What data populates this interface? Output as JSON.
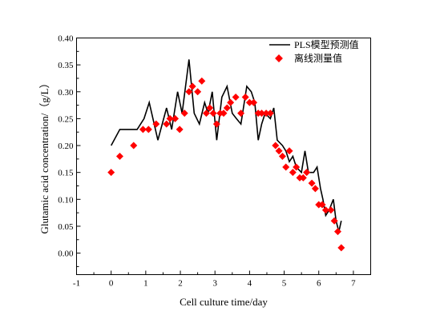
{
  "chart_data": {
    "type": "line",
    "title": "",
    "xlabel": "Cell culture time/day",
    "ylabel": "Glutamic acid concentration/（g/L）",
    "xlim": [
      -1,
      7.5
    ],
    "ylim": [
      -0.04,
      0.4
    ],
    "xticks": [
      "-1",
      "0",
      "1",
      "2",
      "3",
      "4",
      "5",
      "6",
      "7"
    ],
    "yticks": [
      "0.00",
      "0.05",
      "0.10",
      "0.15",
      "0.20",
      "0.25",
      "0.30",
      "0.35",
      "0.40"
    ],
    "grid": false,
    "legend_position": "top-right",
    "series": [
      {
        "name": "PLS模型预测值",
        "kind": "line",
        "color": "#000000",
        "x": [
          0,
          0.25,
          0.5,
          0.75,
          0.95,
          1.1,
          1.35,
          1.6,
          1.75,
          1.92,
          2.05,
          2.25,
          2.4,
          2.55,
          2.7,
          2.8,
          2.92,
          3.05,
          3.2,
          3.35,
          3.5,
          3.62,
          3.75,
          3.92,
          4.05,
          4.15,
          4.25,
          4.35,
          4.45,
          4.6,
          4.7,
          4.8,
          4.95,
          5.05,
          5.15,
          5.25,
          5.35,
          5.5,
          5.6,
          5.7,
          5.85,
          5.95,
          6.05,
          6.12,
          6.2,
          6.3,
          6.42,
          6.5,
          6.58,
          6.65
        ],
        "y": [
          0.2,
          0.23,
          0.23,
          0.23,
          0.25,
          0.28,
          0.21,
          0.27,
          0.23,
          0.3,
          0.26,
          0.36,
          0.26,
          0.24,
          0.28,
          0.26,
          0.3,
          0.21,
          0.29,
          0.31,
          0.26,
          0.25,
          0.24,
          0.31,
          0.3,
          0.28,
          0.21,
          0.24,
          0.26,
          0.25,
          0.27,
          0.21,
          0.2,
          0.19,
          0.17,
          0.18,
          0.16,
          0.15,
          0.19,
          0.15,
          0.15,
          0.16,
          0.12,
          0.1,
          0.07,
          0.08,
          0.1,
          0.06,
          0.04,
          0.06
        ]
      },
      {
        "name": "离线测量值",
        "kind": "scatter",
        "color": "#ff0000",
        "x": [
          0,
          0.25,
          0.65,
          0.92,
          1.08,
          1.3,
          1.6,
          1.7,
          1.85,
          1.98,
          2.12,
          2.25,
          2.35,
          2.5,
          2.62,
          2.75,
          2.85,
          2.95,
          3.05,
          3.15,
          3.25,
          3.35,
          3.45,
          3.6,
          3.75,
          3.88,
          4,
          4.12,
          4.25,
          4.35,
          4.48,
          4.6,
          4.75,
          4.85,
          4.95,
          5.05,
          5.15,
          5.25,
          5.35,
          5.45,
          5.55,
          5.65,
          5.8,
          5.9,
          6.0,
          6.1,
          6.2,
          6.35,
          6.45,
          6.55,
          6.65
        ],
        "y": [
          0.15,
          0.18,
          0.2,
          0.23,
          0.23,
          0.24,
          0.24,
          0.25,
          0.25,
          0.23,
          0.26,
          0.3,
          0.31,
          0.3,
          0.32,
          0.26,
          0.27,
          0.26,
          0.24,
          0.26,
          0.26,
          0.27,
          0.28,
          0.29,
          0.26,
          0.29,
          0.28,
          0.28,
          0.26,
          0.26,
          0.26,
          0.26,
          0.2,
          0.19,
          0.18,
          0.16,
          0.19,
          0.15,
          0.16,
          0.14,
          0.14,
          0.15,
          0.13,
          0.12,
          0.09,
          0.09,
          0.08,
          0.08,
          0.06,
          0.04,
          0.01
        ]
      }
    ]
  }
}
